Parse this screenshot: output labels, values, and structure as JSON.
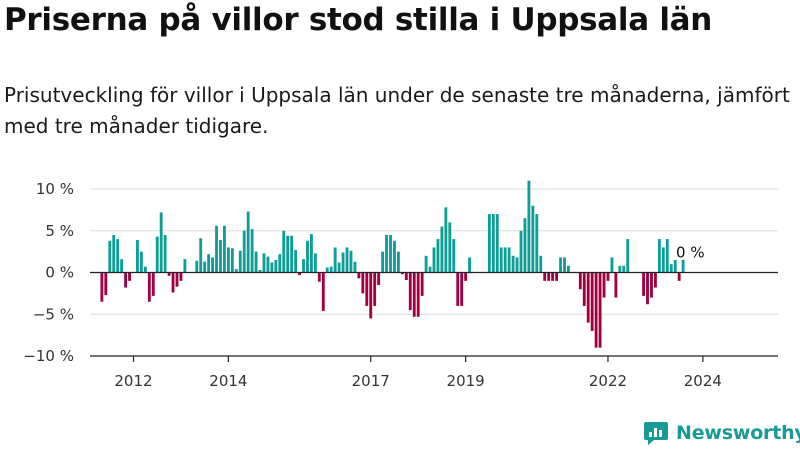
{
  "header": {
    "title": "Priserna på villor stod stilla i Uppsala län",
    "subtitle": "Prisutveckling för villor i Uppsala län under de senaste tre månaderna, jämfört med tre månader tidigare."
  },
  "brand": {
    "name": "Newsworthy",
    "color": "#179b94"
  },
  "colors": {
    "positive": "#0f9e96",
    "negative": "#a0003f",
    "grid": "#dddddd",
    "axis": "#222222"
  },
  "chart_data": {
    "type": "bar",
    "title": "Priserna på villor stod stilla i Uppsala län",
    "subtitle": "Prisutveckling för villor i Uppsala län under de senaste tre månaderna, jämfört med tre månader tidigare.",
    "xlabel": "",
    "ylabel": "",
    "x_unit": "month",
    "x_range": [
      "2011-02",
      "2025-08"
    ],
    "ylim": [
      -10,
      10
    ],
    "yticks": [
      10,
      5,
      0,
      -5,
      -10
    ],
    "ytick_labels": [
      "10 %",
      "5 %",
      "0 %",
      "−5 %",
      "−10 %"
    ],
    "xtick_labels": [
      {
        "label": "2012",
        "year": 2012
      },
      {
        "label": "2014",
        "year": 2014
      },
      {
        "label": "2017",
        "year": 2017
      },
      {
        "label": "2019",
        "year": 2019
      },
      {
        "label": "2022",
        "year": 2022
      },
      {
        "label": "2024",
        "year": 2024
      }
    ],
    "grid": true,
    "legend": "none",
    "end_label": "0 %",
    "series": [
      {
        "points": [
          [
            "2011-05",
            -3.5
          ],
          [
            "2011-06",
            -2.7
          ],
          [
            "2011-07",
            3.8
          ],
          [
            "2011-08",
            4.5
          ],
          [
            "2011-09",
            4.0
          ],
          [
            "2011-10",
            1.6
          ],
          [
            "2011-11",
            -1.8
          ],
          [
            "2011-12",
            -1.0
          ],
          [
            "2012-02",
            3.9
          ],
          [
            "2012-03",
            2.5
          ],
          [
            "2012-04",
            0.7
          ],
          [
            "2012-05",
            -3.5
          ],
          [
            "2012-06",
            -2.8
          ],
          [
            "2012-07",
            4.3
          ],
          [
            "2012-08",
            7.2
          ],
          [
            "2012-09",
            4.5
          ],
          [
            "2012-10",
            -0.4
          ],
          [
            "2012-11",
            -2.4
          ],
          [
            "2012-12",
            -1.7
          ],
          [
            "2013-01",
            -1.0
          ],
          [
            "2013-02",
            1.6
          ],
          [
            "2013-05",
            1.4
          ],
          [
            "2013-06",
            4.1
          ],
          [
            "2013-07",
            1.3
          ],
          [
            "2013-08",
            2.2
          ],
          [
            "2013-09",
            1.8
          ],
          [
            "2013-10",
            5.6
          ],
          [
            "2013-11",
            3.9
          ],
          [
            "2013-12",
            5.6
          ],
          [
            "2014-01",
            3.0
          ],
          [
            "2014-02",
            2.9
          ],
          [
            "2014-03",
            0.4
          ],
          [
            "2014-04",
            2.6
          ],
          [
            "2014-05",
            5.0
          ],
          [
            "2014-06",
            7.3
          ],
          [
            "2014-07",
            5.2
          ],
          [
            "2014-08",
            2.5
          ],
          [
            "2014-09",
            0.3
          ],
          [
            "2014-10",
            2.3
          ],
          [
            "2014-11",
            1.9
          ],
          [
            "2014-12",
            1.2
          ],
          [
            "2015-01",
            1.5
          ],
          [
            "2015-02",
            2.2
          ],
          [
            "2015-03",
            5.0
          ],
          [
            "2015-04",
            4.4
          ],
          [
            "2015-05",
            4.4
          ],
          [
            "2015-06",
            2.7
          ],
          [
            "2015-07",
            -0.3
          ],
          [
            "2015-08",
            1.6
          ],
          [
            "2015-09",
            3.8
          ],
          [
            "2015-10",
            4.6
          ],
          [
            "2015-11",
            2.3
          ],
          [
            "2015-12",
            -1.1
          ],
          [
            "2016-01",
            -4.6
          ],
          [
            "2016-02",
            0.6
          ],
          [
            "2016-03",
            0.7
          ],
          [
            "2016-04",
            3.0
          ],
          [
            "2016-05",
            1.2
          ],
          [
            "2016-06",
            2.4
          ],
          [
            "2016-07",
            3.0
          ],
          [
            "2016-08",
            2.6
          ],
          [
            "2016-09",
            1.3
          ],
          [
            "2016-10",
            -0.7
          ],
          [
            "2016-11",
            -2.5
          ],
          [
            "2016-12",
            -4.0
          ],
          [
            "2017-01",
            -5.5
          ],
          [
            "2017-02",
            -4.0
          ],
          [
            "2017-03",
            -1.5
          ],
          [
            "2017-04",
            2.5
          ],
          [
            "2017-05",
            4.5
          ],
          [
            "2017-06",
            4.5
          ],
          [
            "2017-07",
            3.8
          ],
          [
            "2017-08",
            2.5
          ],
          [
            "2017-09",
            -0.2
          ],
          [
            "2017-10",
            -0.9
          ],
          [
            "2017-11",
            -4.5
          ],
          [
            "2017-12",
            -5.3
          ],
          [
            "2018-01",
            -5.3
          ],
          [
            "2018-02",
            -2.8
          ],
          [
            "2018-03",
            2.0
          ],
          [
            "2018-04",
            0.7
          ],
          [
            "2018-05",
            3.0
          ],
          [
            "2018-06",
            4.0
          ],
          [
            "2018-07",
            5.5
          ],
          [
            "2018-08",
            7.8
          ],
          [
            "2018-09",
            6.0
          ],
          [
            "2018-10",
            4.0
          ],
          [
            "2018-11",
            -4.0
          ],
          [
            "2018-12",
            -4.0
          ],
          [
            "2019-01",
            -1.0
          ],
          [
            "2019-02",
            1.8
          ],
          [
            "2019-07",
            7.0
          ],
          [
            "2019-08",
            7.0
          ],
          [
            "2019-09",
            7.0
          ],
          [
            "2019-10",
            3.0
          ],
          [
            "2019-11",
            3.0
          ],
          [
            "2019-12",
            3.0
          ],
          [
            "2020-01",
            2.0
          ],
          [
            "2020-02",
            1.8
          ],
          [
            "2020-03",
            5.0
          ],
          [
            "2020-04",
            6.5
          ],
          [
            "2020-05",
            11.0
          ],
          [
            "2020-06",
            8.0
          ],
          [
            "2020-07",
            7.0
          ],
          [
            "2020-08",
            2.0
          ],
          [
            "2020-09",
            -1.0
          ],
          [
            "2020-10",
            -1.0
          ],
          [
            "2020-11",
            -1.0
          ],
          [
            "2020-12",
            -1.0
          ],
          [
            "2021-01",
            1.8
          ],
          [
            "2021-02",
            1.8
          ],
          [
            "2021-03",
            0.8
          ],
          [
            "2021-06",
            -2.0
          ],
          [
            "2021-07",
            -4.0
          ],
          [
            "2021-08",
            -6.0
          ],
          [
            "2021-09",
            -7.0
          ],
          [
            "2021-10",
            -9.0
          ],
          [
            "2021-11",
            -9.0
          ],
          [
            "2021-12",
            -3.0
          ],
          [
            "2022-01",
            -1.0
          ],
          [
            "2022-02",
            1.8
          ],
          [
            "2022-03",
            -3.0
          ],
          [
            "2022-04",
            0.8
          ],
          [
            "2022-05",
            0.8
          ],
          [
            "2022-06",
            4.0
          ],
          [
            "2022-10",
            -2.8
          ],
          [
            "2022-11",
            -3.8
          ],
          [
            "2022-12",
            -3.0
          ],
          [
            "2023-01",
            -1.8
          ],
          [
            "2023-02",
            4.0
          ],
          [
            "2023-03",
            3.0
          ],
          [
            "2023-04",
            4.0
          ],
          [
            "2023-05",
            1.0
          ],
          [
            "2023-06",
            1.5
          ],
          [
            "2023-07",
            -1.0
          ],
          [
            "2023-08",
            1.5
          ],
          [
            "2023-09",
            0.0
          ]
        ]
      }
    ]
  }
}
